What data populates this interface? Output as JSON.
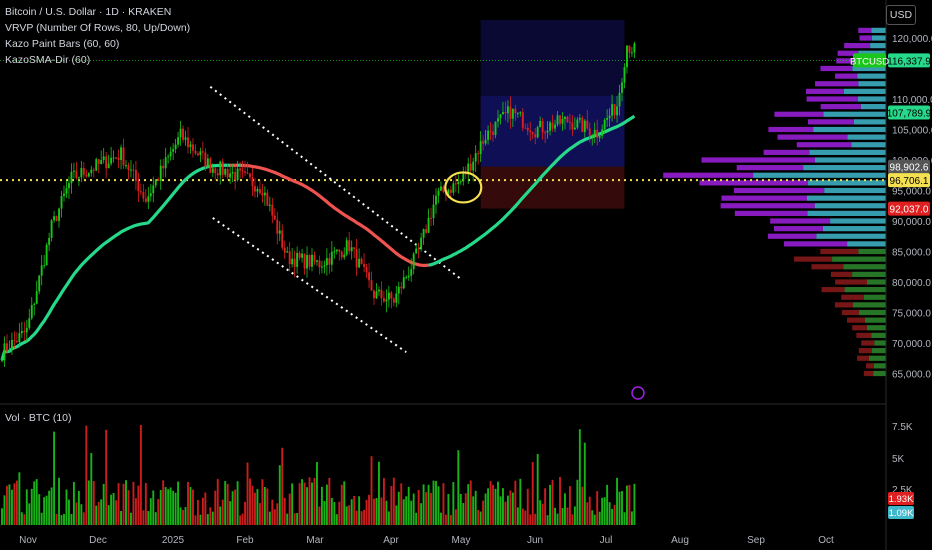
{
  "legend": {
    "title": "Bitcoin / U.S. Dollar · 1D · KRAKEN",
    "vrvp": "VRVP (Number Of Rows, 80, Up/Down)",
    "paint": "Kazo Paint Bars (60, 60)",
    "sma": "KazoSMA-Dir (60)"
  },
  "vol_legend": "Vol · BTC (10)",
  "currency": "USD",
  "ticker_label": "BTCUSD",
  "colors": {
    "up": "#19c619",
    "down": "#e02020",
    "sma_up": "#26d98a",
    "sma_down": "#ef5350",
    "vrvp_up": "#3fb8cc",
    "vrvp_down": "#a020e0",
    "vrvp_up_low": "#2e8b2e",
    "vrvp_down_low": "#8b1a1a",
    "bg": "#000000"
  },
  "chart_data": {
    "type": "candlestick",
    "price_axis": {
      "ticks": [
        120000,
        115000,
        110000,
        105000,
        100000,
        95000,
        90000,
        85000,
        80000,
        75000,
        70000,
        65000
      ],
      "tick_labels": [
        "120,000.0",
        "",
        "110,000.0",
        "105,000.0",
        "100,000.0",
        "95,000.0",
        "90,000.0",
        "85,000.0",
        "80,000.0",
        "75,000.0",
        "70,000.0",
        "65,000.0"
      ],
      "ylim": [
        63000,
        126000
      ]
    },
    "x_axis": {
      "labels": [
        "Nov",
        "Dec",
        "2025",
        "Feb",
        "Mar",
        "Apr",
        "May",
        "Jun",
        "Jul",
        "Aug",
        "Sep",
        "Oct"
      ]
    },
    "price_labels": [
      {
        "text": "116,337.9",
        "value": 116337.9,
        "color": "#26d98a"
      },
      {
        "text": "107,789.9",
        "value": 107789.9,
        "color": "#26d98a"
      },
      {
        "text": "98,902.6",
        "value": 98902.6,
        "color": "#555555"
      },
      {
        "text": "96,706.1",
        "value": 96706.1,
        "color": "#f5e050"
      },
      {
        "text": "92,037.0",
        "value": 92037.0,
        "color": "#e02020"
      }
    ],
    "volume_axis": {
      "ticks": [
        "7.5K",
        "5K",
        "2.5K"
      ]
    },
    "volume_labels": [
      {
        "text": "1.93K",
        "color": "#e02020"
      },
      {
        "text": "1.09K",
        "color": "#3fb8cc"
      }
    ],
    "anchors": [
      {
        "t": 0,
        "p": 68500
      },
      {
        "t": 10,
        "p": 72000
      },
      {
        "t": 20,
        "p": 89000
      },
      {
        "t": 28,
        "p": 97000
      },
      {
        "t": 38,
        "p": 99000
      },
      {
        "t": 48,
        "p": 101000
      },
      {
        "t": 58,
        "p": 93500
      },
      {
        "t": 72,
        "p": 104000
      },
      {
        "t": 84,
        "p": 99000
      },
      {
        "t": 95,
        "p": 97500
      },
      {
        "t": 105,
        "p": 95500
      },
      {
        "t": 115,
        "p": 84000
      },
      {
        "t": 128,
        "p": 83000
      },
      {
        "t": 140,
        "p": 86000
      },
      {
        "t": 150,
        "p": 78000
      },
      {
        "t": 158,
        "p": 77000
      },
      {
        "t": 168,
        "p": 85000
      },
      {
        "t": 175,
        "p": 94000
      },
      {
        "t": 185,
        "p": 96500
      },
      {
        "t": 195,
        "p": 104000
      },
      {
        "t": 205,
        "p": 108000
      },
      {
        "t": 215,
        "p": 105000
      },
      {
        "t": 228,
        "p": 106500
      },
      {
        "t": 240,
        "p": 104500
      },
      {
        "t": 248,
        "p": 109000
      },
      {
        "t": 252,
        "p": 119000
      },
      {
        "t": 255,
        "p": 118000
      }
    ]
  }
}
